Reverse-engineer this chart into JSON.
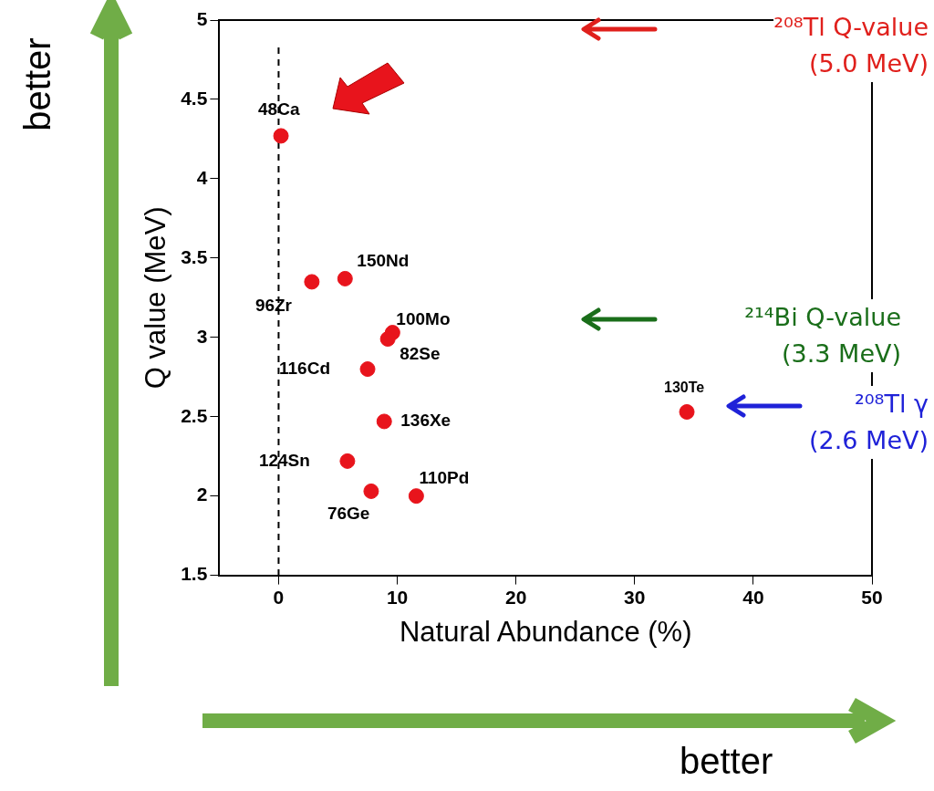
{
  "chart_data": {
    "type": "scatter",
    "xlabel": "Natural Abundance (%)",
    "ylabel": "Q value (MeV)",
    "x": [
      0.2,
      2.8,
      5.6,
      9.6,
      9.2,
      7.5,
      8.9,
      5.8,
      7.8,
      11.6,
      34.4
    ],
    "series": [
      {
        "color": "#e8141c",
        "values": [
          4.27,
          3.35,
          3.37,
          3.03,
          2.99,
          2.8,
          2.47,
          2.22,
          2.03,
          2.0,
          2.53
        ]
      }
    ],
    "marker": "circle",
    "grid": false,
    "legend": false,
    "xlim": [
      -5,
      50
    ],
    "xticks": [
      0,
      10,
      20,
      30,
      40,
      50
    ],
    "ylim": [
      1.5,
      5
    ],
    "yticks": [
      1.5,
      2,
      2.5,
      3,
      3.5,
      4,
      4.5,
      5
    ],
    "ref_lines": [
      {
        "axis": "x",
        "value": 0,
        "line_style": "dashed",
        "color": "#000000"
      }
    ],
    "annotations": [
      {
        "text": "48Ca",
        "x": 0.2,
        "y": 4.27
      },
      {
        "text": "96Zr",
        "x": 2.8,
        "y": 3.35
      },
      {
        "text": "150Nd",
        "x": 5.6,
        "y": 3.37
      },
      {
        "text": "100Mo",
        "x": 9.6,
        "y": 3.03
      },
      {
        "text": "82Se",
        "x": 9.2,
        "y": 2.99
      },
      {
        "text": "116Cd",
        "x": 7.5,
        "y": 2.8
      },
      {
        "text": "136Xe",
        "x": 8.9,
        "y": 2.47
      },
      {
        "text": "124Sn",
        "x": 5.8,
        "y": 2.22
      },
      {
        "text": "76Ge",
        "x": 7.8,
        "y": 2.03
      },
      {
        "text": "110Pd",
        "x": 11.6,
        "y": 2.0
      },
      {
        "text": "130Te",
        "x": 34.4,
        "y": 2.53
      },
      "²⁰⁸Tl Q-value\n(5.0 MeV)",
      "²¹⁴Bi Q-value\n(3.3 MeV)",
      "²⁰⁸Tl γ\n(2.6 MeV)",
      "better",
      "better"
    ]
  }
}
